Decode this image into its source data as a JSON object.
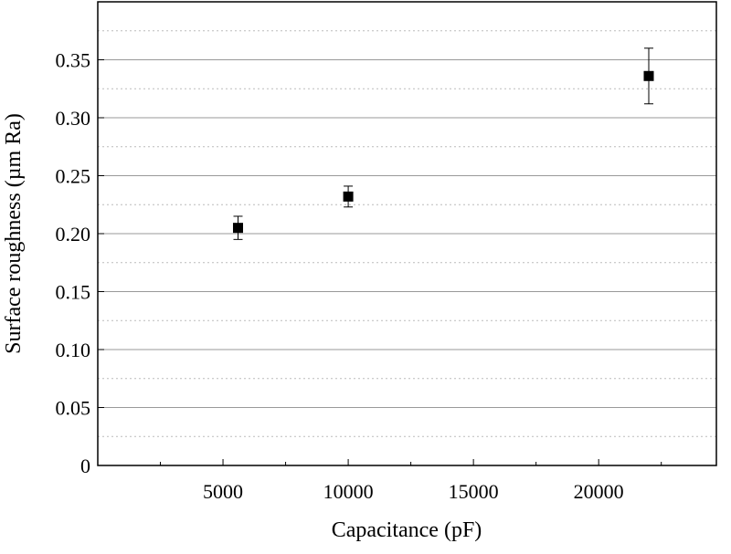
{
  "chart_data": {
    "type": "scatter",
    "x_label": "Capacitance (pF)",
    "y_label": "Surface roughness (µm Ra)",
    "xlim": [
      0,
      24700
    ],
    "ylim": [
      0,
      0.4
    ],
    "xticks": [
      5000,
      10000,
      15000,
      20000
    ],
    "yticks": [
      0,
      0.05,
      {
        "value": 0.1,
        "label": "0.10"
      },
      0.15,
      {
        "value": 0.2,
        "label": "0.20"
      },
      0.25,
      {
        "value": 0.3,
        "label": "0.30"
      },
      0.35
    ],
    "minor_xticks": [
      2500,
      7500,
      12500,
      17500,
      22500
    ],
    "minor_yticks": [
      0.025,
      0.075,
      0.125,
      0.175,
      0.225,
      0.275,
      0.325,
      0.375
    ],
    "grid": true,
    "series": [
      {
        "color": "#000000",
        "x": [
          5600,
          10000,
          22000
        ],
        "values": [
          0.205,
          0.232,
          0.336
        ],
        "errors": [
          0.01,
          0.009,
          0.024
        ]
      }
    ]
  }
}
